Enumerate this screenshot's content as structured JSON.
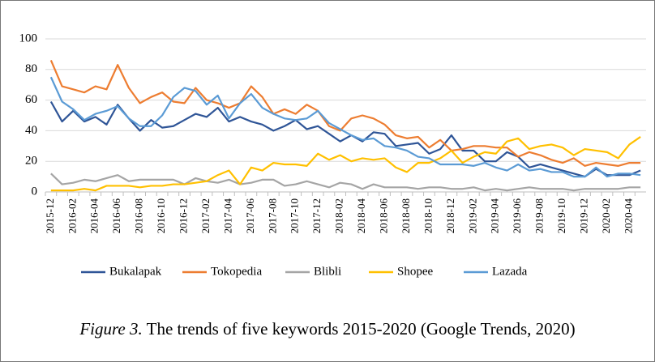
{
  "chart_data": {
    "type": "line",
    "categories": [
      "2015-12",
      null,
      "2016-02",
      null,
      "2016-04",
      null,
      "2016-06",
      null,
      "2016-08",
      null,
      "2016-10",
      null,
      "2016-12",
      null,
      "2017-02",
      null,
      "2017-04",
      null,
      "2017-06",
      null,
      "2017-08",
      null,
      "2017-10",
      null,
      "2017-12",
      null,
      "2018-02",
      null,
      "2018-04",
      null,
      "2018-06",
      null,
      "2018-08",
      null,
      "2018-10",
      null,
      "2018-12",
      null,
      "2019-02",
      null,
      "2019-04",
      null,
      "2019-06",
      null,
      "2019-08",
      null,
      "2019-10",
      null,
      "2019-12",
      null,
      "2020-02",
      null,
      "2020-04",
      null
    ],
    "series": [
      {
        "name": "Bukalapak",
        "color": "#2f5597",
        "values": [
          59,
          46,
          53,
          46,
          49,
          44,
          57,
          48,
          40,
          47,
          42,
          43,
          47,
          51,
          49,
          55,
          46,
          49,
          46,
          44,
          40,
          43,
          47,
          41,
          43,
          38,
          33,
          37,
          33,
          39,
          38,
          30,
          31,
          32,
          25,
          28,
          37,
          27,
          27,
          20,
          20,
          26,
          23,
          16,
          18,
          16,
          14,
          12,
          10,
          15,
          11,
          11,
          11,
          14
        ]
      },
      {
        "name": "Tokopedia",
        "color": "#ed7d31",
        "values": [
          86,
          69,
          67,
          65,
          69,
          67,
          83,
          68,
          58,
          62,
          65,
          59,
          58,
          68,
          60,
          58,
          55,
          58,
          69,
          62,
          51,
          54,
          51,
          57,
          53,
          43,
          40,
          48,
          50,
          48,
          44,
          37,
          35,
          36,
          29,
          34,
          27,
          28,
          30,
          30,
          29,
          29,
          23,
          26,
          24,
          21,
          19,
          22,
          17,
          19,
          18,
          17,
          19,
          19
        ]
      },
      {
        "name": "Blibli",
        "color": "#a5a5a5",
        "values": [
          12,
          5,
          6,
          8,
          7,
          9,
          11,
          7,
          8,
          8,
          8,
          8,
          5,
          9,
          7,
          6,
          8,
          5,
          6,
          8,
          8,
          4,
          5,
          7,
          5,
          3,
          6,
          5,
          2,
          5,
          3,
          3,
          3,
          2,
          3,
          3,
          2,
          2,
          3,
          1,
          2,
          1,
          2,
          3,
          2,
          2,
          2,
          1,
          2,
          2,
          2,
          2,
          3,
          3
        ]
      },
      {
        "name": "Shopee",
        "color": "#ffc000",
        "values": [
          1,
          1,
          1,
          2,
          1,
          4,
          4,
          4,
          3,
          4,
          4,
          5,
          5,
          6,
          7,
          11,
          14,
          5,
          16,
          14,
          19,
          18,
          18,
          17,
          25,
          21,
          24,
          20,
          22,
          21,
          22,
          16,
          13,
          19,
          19,
          22,
          27,
          19,
          23,
          26,
          25,
          33,
          35,
          28,
          30,
          31,
          29,
          24,
          28,
          27,
          26,
          22,
          31,
          36
        ]
      },
      {
        "name": "Lazada",
        "color": "#5b9bd5",
        "values": [
          75,
          59,
          54,
          47,
          51,
          53,
          56,
          48,
          43,
          43,
          50,
          62,
          68,
          66,
          57,
          63,
          48,
          58,
          64,
          55,
          51,
          48,
          47,
          48,
          53,
          45,
          41,
          37,
          34,
          35,
          30,
          29,
          27,
          23,
          22,
          18,
          18,
          18,
          17,
          19,
          16,
          14,
          18,
          14,
          15,
          13,
          13,
          10,
          10,
          16,
          10,
          12,
          12,
          11
        ]
      }
    ],
    "ylim": [
      0,
      100
    ],
    "yticks": [
      0,
      20,
      40,
      60,
      80,
      100
    ],
    "grid": true,
    "legend": "bottom",
    "caption_label": "Figure 3.",
    "caption": "The trends of five keywords 2015-2020 (Google Trends, 2020)"
  }
}
